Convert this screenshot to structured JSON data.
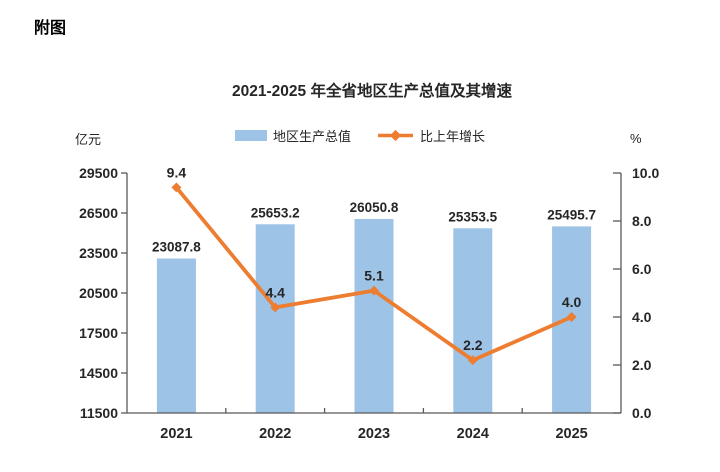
{
  "page": {
    "figure_label": "附图"
  },
  "chart_data": {
    "type": "bar",
    "title": "2021-2025 年全省地区生产总值及其增速",
    "categories": [
      "2021",
      "2022",
      "2023",
      "2024",
      "2025"
    ],
    "series": [
      {
        "name": "地区生产总值",
        "type": "bar",
        "axis": "left",
        "color": "#9DC3E6",
        "values": [
          23087.8,
          25653.2,
          26050.8,
          25353.5,
          25495.7
        ],
        "labels": [
          "23087.8",
          "25653.2",
          "26050.8",
          "25353.5",
          "25495.7"
        ]
      },
      {
        "name": "比上年增长",
        "type": "line",
        "axis": "right",
        "color": "#ED7D31",
        "values": [
          9.4,
          4.4,
          5.1,
          2.2,
          4.0
        ],
        "labels": [
          "9.4",
          "4.4",
          "5.1",
          "2.2",
          "4.0"
        ]
      }
    ],
    "left_axis": {
      "unit": "亿元",
      "min": 11500,
      "max": 29500,
      "tick_values": [
        11500,
        14500,
        17500,
        20500,
        23500,
        26500,
        29500
      ],
      "tick_labels": [
        "11500",
        "14500",
        "17500",
        "20500",
        "23500",
        "26500",
        "29500"
      ]
    },
    "right_axis": {
      "unit": "%",
      "min": 0,
      "max": 10,
      "tick_values": [
        0,
        2,
        4,
        6,
        8,
        10
      ],
      "tick_labels": [
        "0.0",
        "2.0",
        "4.0",
        "6.0",
        "8.0",
        "10.0"
      ]
    },
    "legend_position": "top-center",
    "grid": false,
    "data_labels": true,
    "colors": {
      "axis": "#595959",
      "text": "#262626"
    }
  }
}
